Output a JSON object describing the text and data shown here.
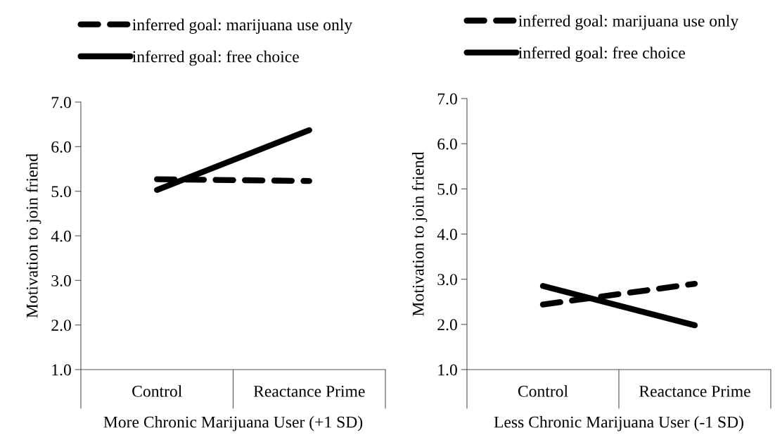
{
  "chart_data": [
    {
      "type": "line",
      "categories": [
        "Control",
        "Reactance Prime"
      ],
      "xlabel": "More Chronic Marijuana User (+1 SD)",
      "ylabel": "Motivation to join friend",
      "ylim": [
        1.0,
        7.0
      ],
      "yticks": [
        {
          "value": 1,
          "label": "1.0"
        },
        {
          "value": 2,
          "label": "2.0"
        },
        {
          "value": 3,
          "label": "3.0"
        },
        {
          "value": 4,
          "label": "4.0"
        },
        {
          "value": 5,
          "label": "5.0"
        },
        {
          "value": 6,
          "label": "6.0"
        },
        {
          "value": 7,
          "label": "7.0"
        }
      ],
      "legend": "top",
      "grid": false,
      "marker": "none",
      "series": [
        {
          "name": "inferred goal: marijuana use only",
          "color": "#000000",
          "line_style": "dashed",
          "values": [
            5.27,
            5.23
          ]
        },
        {
          "name": "inferred goal: free choice",
          "color": "#000000",
          "line_style": "solid",
          "values": [
            5.03,
            6.37
          ]
        }
      ]
    },
    {
      "type": "line",
      "categories": [
        "Control",
        "Reactance Prime"
      ],
      "xlabel": "Less Chronic Marijuana User (-1 SD)",
      "ylabel": "Motivation to join friend",
      "ylim": [
        1.0,
        7.0
      ],
      "yticks": [
        {
          "value": 1,
          "label": "1.0"
        },
        {
          "value": 2,
          "label": "2.0"
        },
        {
          "value": 3,
          "label": "3.0"
        },
        {
          "value": 4,
          "label": "4.0"
        },
        {
          "value": 5,
          "label": "5.0"
        },
        {
          "value": 6,
          "label": "6.0"
        },
        {
          "value": 7,
          "label": "7.0"
        }
      ],
      "legend": "top",
      "grid": false,
      "marker": "none",
      "series": [
        {
          "name": "inferred goal: marijuana use only",
          "color": "#000000",
          "line_style": "dashed",
          "values": [
            2.44,
            2.9
          ]
        },
        {
          "name": "inferred goal: free choice",
          "color": "#000000",
          "line_style": "solid",
          "values": [
            2.85,
            1.98
          ]
        }
      ]
    }
  ]
}
